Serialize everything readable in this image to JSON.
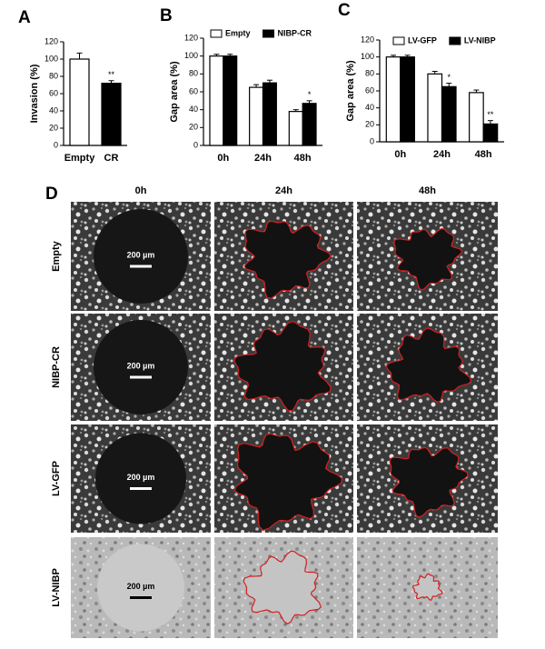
{
  "chart_data": [
    {
      "type": "bar",
      "panel": "A",
      "ylabel": "Invasion (%)",
      "categories": [
        "Empty",
        "CR"
      ],
      "values": [
        100,
        72
      ],
      "errors": [
        7,
        3
      ],
      "colors": [
        "#ffffff",
        "#000000"
      ],
      "significance": [
        null,
        "**"
      ],
      "ylim": [
        0,
        120
      ],
      "yticks": [
        0,
        20,
        40,
        60,
        80,
        100,
        120
      ]
    },
    {
      "type": "grouped-bar",
      "panel": "B",
      "ylabel": "Gap area (%)",
      "categories": [
        "0h",
        "24h",
        "48h"
      ],
      "series": [
        {
          "name": "Empty",
          "color": "#ffffff",
          "values": [
            100,
            65,
            38
          ],
          "errors": [
            2,
            3,
            2
          ],
          "significance": [
            null,
            null,
            null
          ]
        },
        {
          "name": "NIBP-CR",
          "color": "#000000",
          "values": [
            100,
            70,
            47
          ],
          "errors": [
            2,
            3,
            3
          ],
          "significance": [
            null,
            null,
            "*"
          ]
        }
      ],
      "ylim": [
        0,
        120
      ],
      "yticks": [
        0,
        20,
        40,
        60,
        80,
        100,
        120
      ]
    },
    {
      "type": "grouped-bar",
      "panel": "C",
      "ylabel": "Gap area (%)",
      "categories": [
        "0h",
        "24h",
        "48h"
      ],
      "series": [
        {
          "name": "LV-GFP",
          "color": "#ffffff",
          "values": [
            100,
            80,
            58
          ],
          "errors": [
            2,
            3,
            3
          ],
          "significance": [
            null,
            null,
            null
          ]
        },
        {
          "name": "LV-NIBP",
          "color": "#000000",
          "values": [
            100,
            65,
            21
          ],
          "errors": [
            2,
            4,
            4
          ],
          "significance": [
            null,
            "*",
            "**"
          ]
        }
      ],
      "ylim": [
        0,
        120
      ],
      "yticks": [
        0,
        20,
        40,
        60,
        80,
        100,
        120
      ]
    }
  ],
  "panel_d": {
    "letter": "D",
    "columns": [
      "0h",
      "24h",
      "48h"
    ],
    "rows": [
      "Empty",
      "NIBP-CR",
      "LV-GFP",
      "LV-NIBP"
    ],
    "scale_bar": "200 µm"
  }
}
